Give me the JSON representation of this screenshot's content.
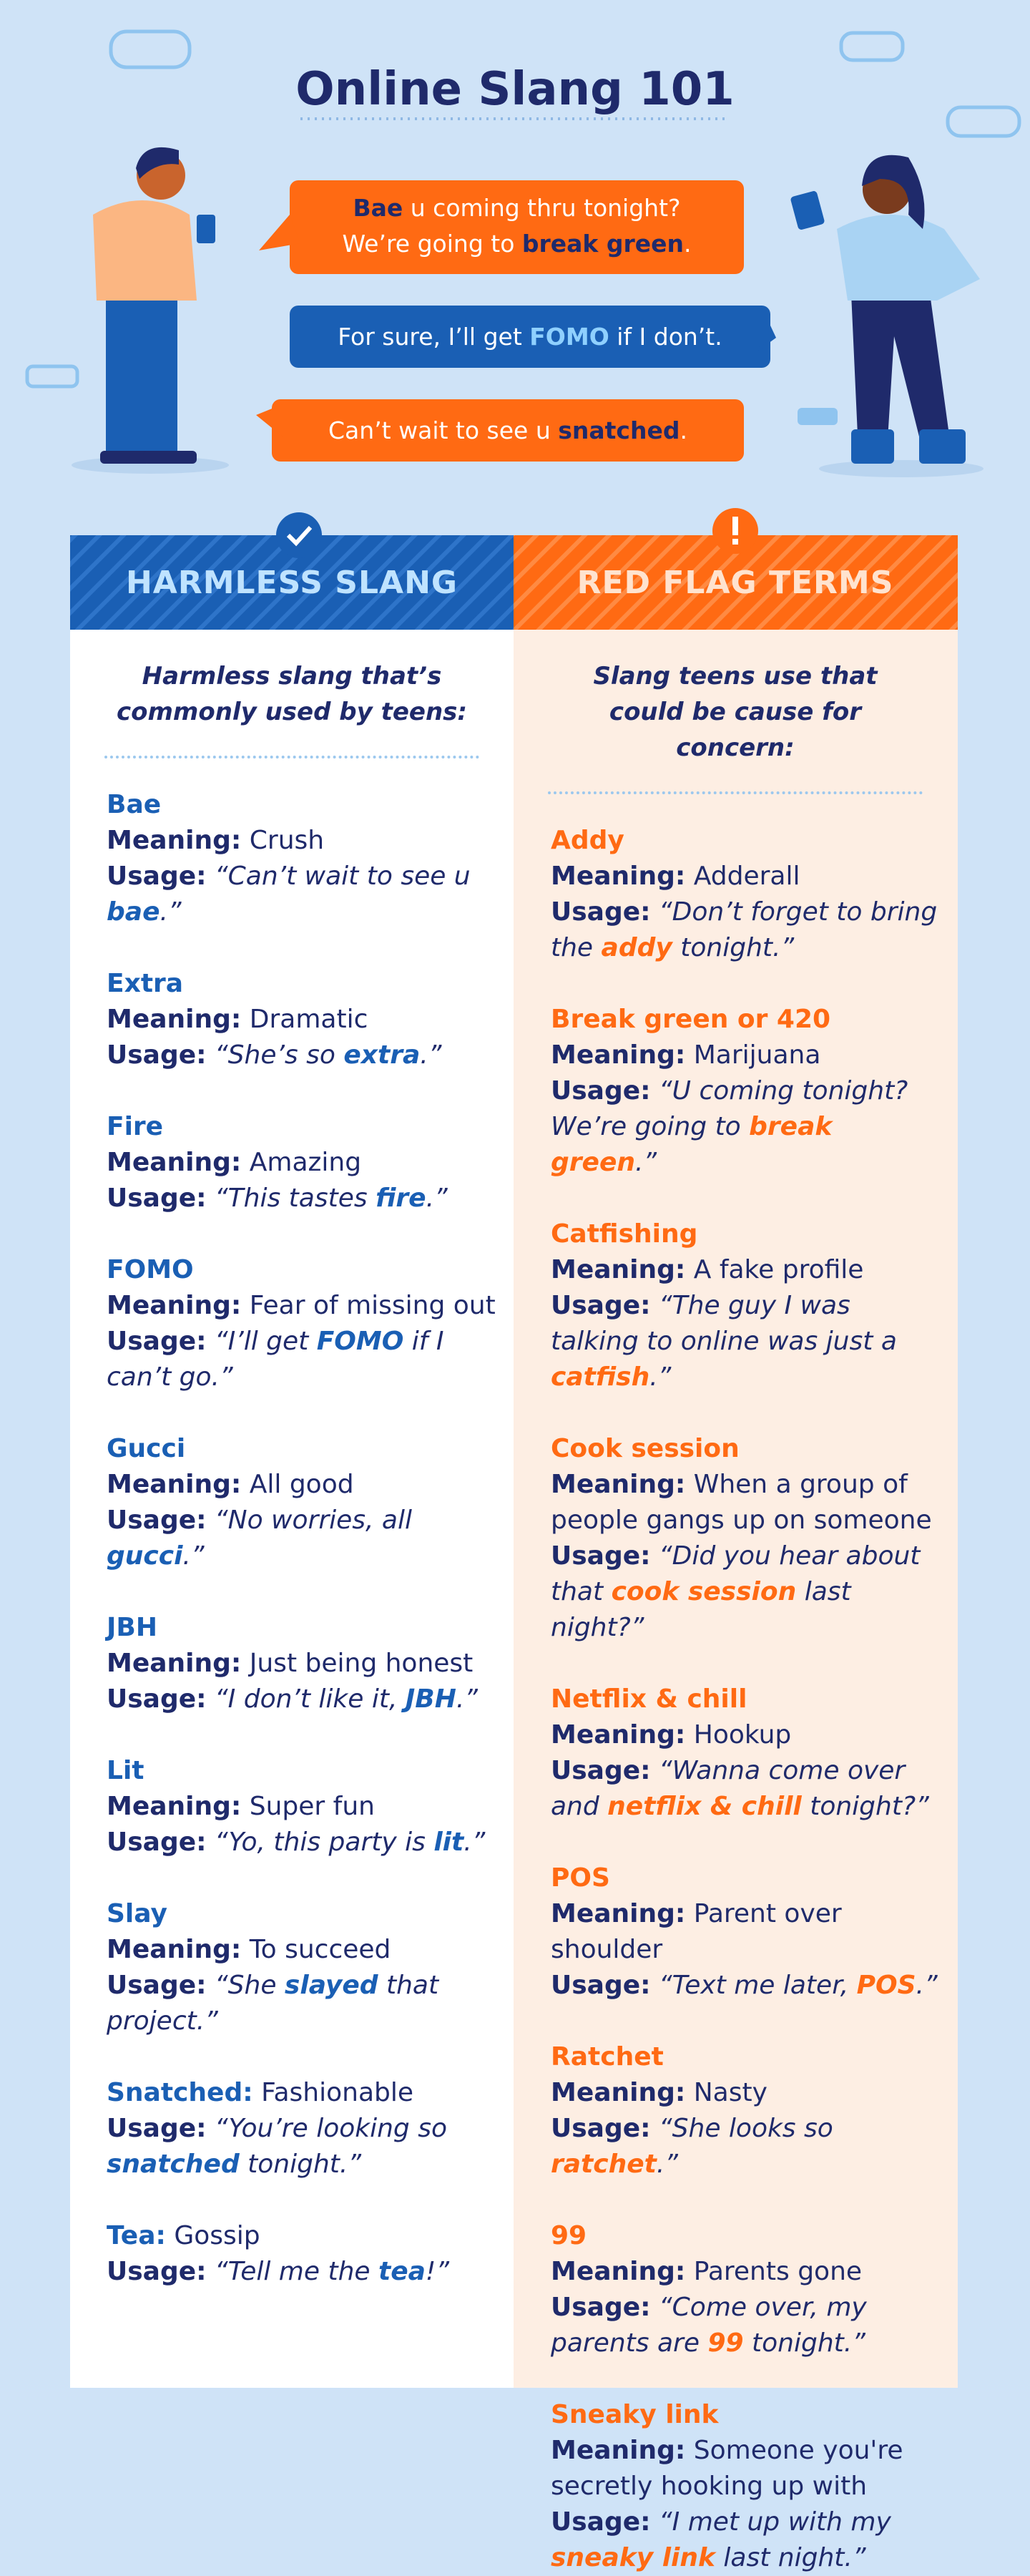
{
  "title": "Online Slang 101",
  "bubbles": [
    {
      "lines": [
        [
          {
            "text": "Bae",
            "strong": true
          },
          {
            "text": " u coming thru tonight?"
          }
        ],
        [
          {
            "text": "We’re going to "
          },
          {
            "text": "break green",
            "strong": true
          },
          {
            "text": "."
          }
        ]
      ]
    },
    {
      "lines": [
        [
          {
            "text": "For sure, I’ll get "
          },
          {
            "text": "FOMO",
            "strong": true
          },
          {
            "text": " if I don’t."
          }
        ]
      ]
    },
    {
      "lines": [
        [
          {
            "text": "Can’t wait to see u "
          },
          {
            "text": "snatched",
            "strong": true
          },
          {
            "text": "."
          }
        ]
      ]
    }
  ],
  "labels": {
    "meaning": "Meaning:",
    "usage": "Usage:"
  },
  "columns": [
    {
      "header": "HARMLESS SLANG",
      "subtitle": "Harmless slang that’s commonly used by teens:",
      "entries": [
        {
          "term": "Bae",
          "meaning": "Crush",
          "usage": {
            "before": "“Can’t wait to see u ",
            "highlight": "bae",
            "after": ".”"
          }
        },
        {
          "term": "Extra",
          "meaning": "Dramatic",
          "usage": {
            "before": "“She’s so ",
            "highlight": "extra",
            "after": ".”"
          }
        },
        {
          "term": "Fire",
          "meaning": "Amazing",
          "usage": {
            "before": "“This tastes ",
            "highlight": "fire",
            "after": ".”"
          }
        },
        {
          "term": "FOMO",
          "meaning": "Fear of missing out",
          "usage": {
            "before": "“I’ll get ",
            "highlight": "FOMO",
            "after": " if I can’t go.”"
          }
        },
        {
          "term": "Gucci",
          "meaning": "All good",
          "usage": {
            "before": "“No worries, all ",
            "highlight": "gucci",
            "after": ".”"
          }
        },
        {
          "term": "JBH",
          "meaning": "Just being honest",
          "usage": {
            "before": "“I don’t like it, ",
            "highlight": "JBH",
            "after": ".”"
          }
        },
        {
          "term": "Lit",
          "meaning": "Super fun",
          "usage": {
            "before": "“Yo, this party is ",
            "highlight": "lit",
            "after": ".”"
          }
        },
        {
          "term": "Slay",
          "meaning": "To succeed",
          "usage": {
            "before": "“She ",
            "highlight": "slayed",
            "after": " that project.”"
          }
        },
        {
          "term": "Snatched:",
          "definition": "Fashionable",
          "usage": {
            "before": "“You’re looking so ",
            "highlight": "snatched",
            "after": " tonight.”"
          }
        },
        {
          "term": "Tea:",
          "definition": "Gossip",
          "usage": {
            "before": "“Tell me the ",
            "highlight": "tea",
            "after": "!”"
          }
        }
      ]
    },
    {
      "header": "RED FLAG TERMS",
      "subtitle": "Slang teens use that could be cause for concern:",
      "entries": [
        {
          "term": "Addy",
          "meaning": "Adderall",
          "usage": {
            "before": "“Don’t forget to bring the ",
            "highlight": "addy",
            "after": " tonight.”"
          }
        },
        {
          "term": "Break green or 420",
          "meaning": "Marijuana",
          "usage": {
            "before": "“U coming tonight? We’re going to ",
            "highlight": "break green",
            "after": ".”"
          }
        },
        {
          "term": "Catfishing",
          "meaning": "A fake profile",
          "usage": {
            "before": "“The guy I was talking to online was just a ",
            "highlight": "catfish",
            "after": ".”"
          }
        },
        {
          "term": "Cook session",
          "meaning": "When a group of people gangs up on someone",
          "usage": {
            "before": "“Did you hear about that ",
            "highlight": "cook session",
            "after": " last night?”"
          }
        },
        {
          "term": "Netflix & chill",
          "meaning": "Hookup",
          "usage": {
            "before": "“Wanna come over and ",
            "highlight": "netflix & chill",
            "after": " tonight?”"
          }
        },
        {
          "term": "POS",
          "meaning": "Parent over shoulder",
          "usage": {
            "before": "“Text me later, ",
            "highlight": "POS",
            "after": ".”"
          }
        },
        {
          "term": "Ratchet",
          "meaning": "Nasty",
          "usage": {
            "before": "“She looks so ",
            "highlight": "ratchet",
            "after": ".”"
          }
        },
        {
          "term": "99",
          "meaning": "Parents gone",
          "usage": {
            "before": "“Come over, my parents are ",
            "highlight": "99",
            "after": " tonight.”"
          }
        },
        {
          "term": "Sneaky link",
          "meaning": "Someone you're secretly hooking up with",
          "usage": {
            "before": "“I met up with my ",
            "highlight": "sneaky link",
            "after": " last night.”"
          }
        }
      ]
    }
  ]
}
